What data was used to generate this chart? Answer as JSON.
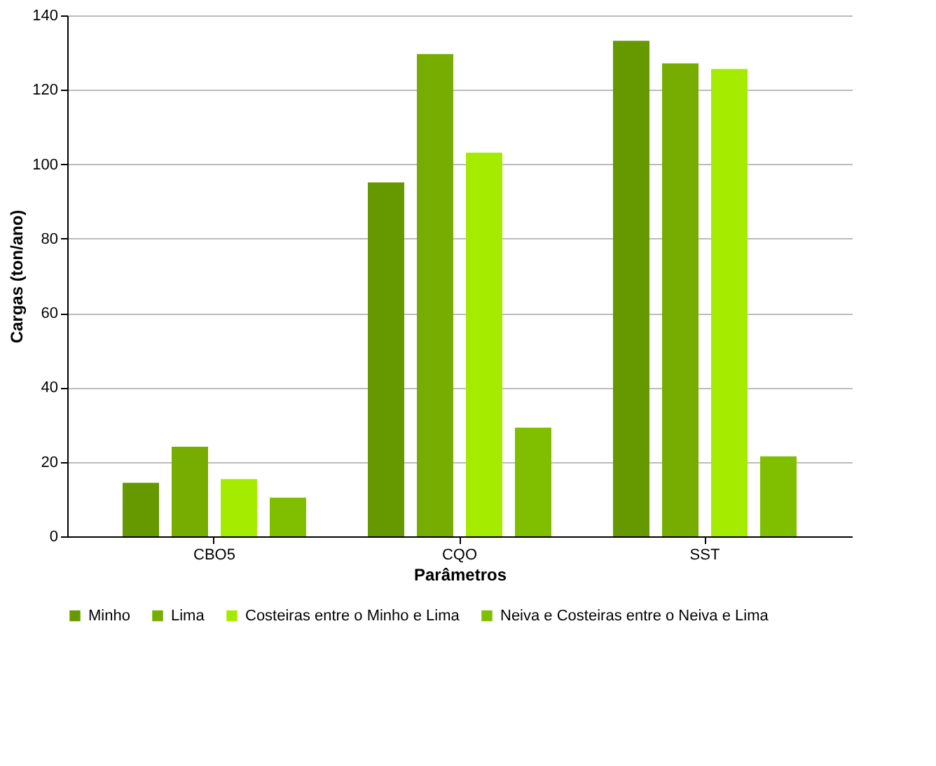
{
  "chart_data": {
    "type": "bar",
    "xlabel": "Parâmetros",
    "ylabel": "Cargas (ton/ano)",
    "categories": [
      "CBO5",
      "CQO",
      "SST"
    ],
    "series": [
      {
        "name": "Minho",
        "color": "#669900",
        "values": [
          14.4,
          95.1,
          133.2
        ]
      },
      {
        "name": "Lima",
        "color": "#77ad00",
        "values": [
          24.1,
          129.6,
          127.1
        ]
      },
      {
        "name": "Costeiras entre o Minho e Lima",
        "color": "#a5eb00",
        "values": [
          15.4,
          103.1,
          125.6
        ]
      },
      {
        "name": "Neiva e Costeiras entre o Neiva e Lima",
        "color": "#80bf00",
        "values": [
          10.4,
          29.2,
          21.5
        ]
      }
    ],
    "ylim": [
      0,
      140
    ],
    "yticks": [
      0,
      20,
      40,
      60,
      80,
      100,
      120,
      140
    ],
    "grid": "y",
    "legend": "bottom"
  }
}
